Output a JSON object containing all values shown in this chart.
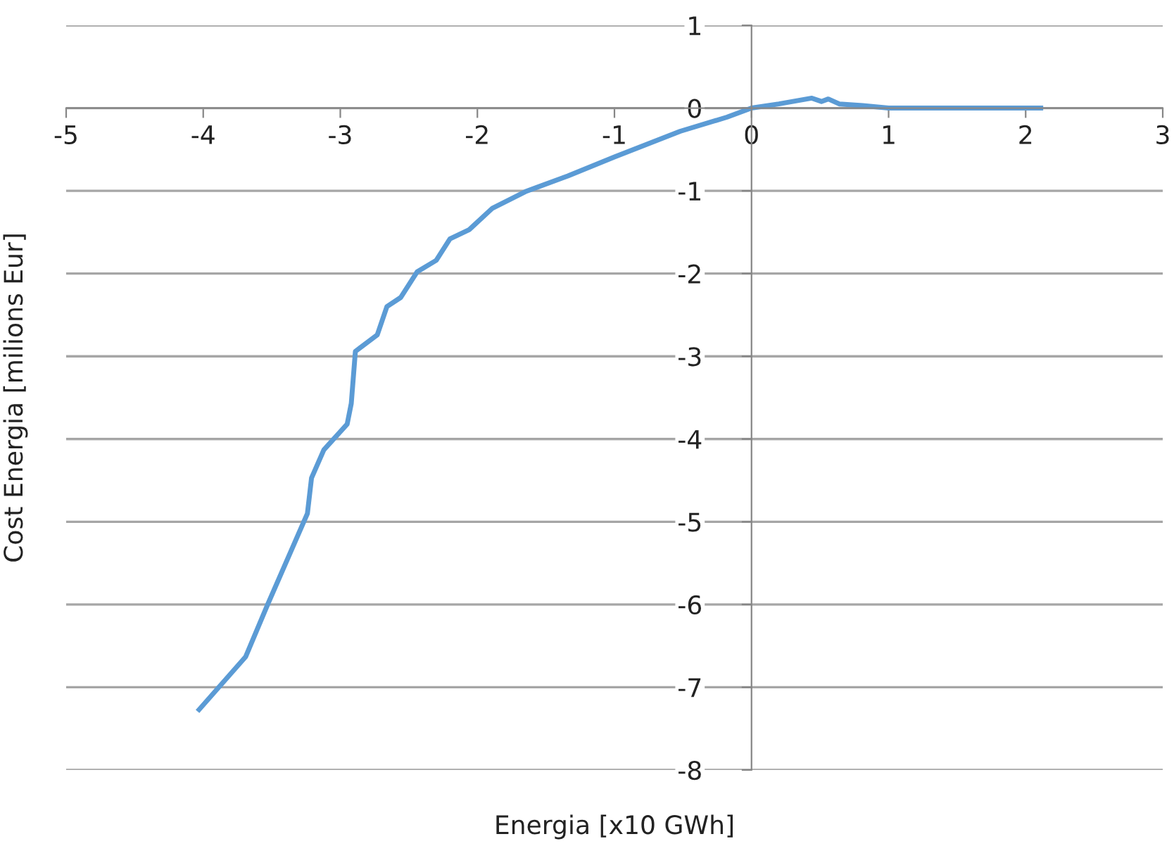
{
  "chart_data": {
    "type": "line",
    "xlabel": "Energia [x10 GWh]",
    "ylabel": "Cost Energia [milions Eur]",
    "xlim": [
      -5,
      3
    ],
    "xticks": [
      -5,
      -4,
      -3,
      -2,
      -1,
      0,
      1,
      2,
      3
    ],
    "ylim": [
      -8,
      1
    ],
    "yticks": [
      -8,
      -7,
      -6,
      -5,
      -4,
      -3,
      -2,
      -1,
      0,
      1
    ],
    "grid": "y",
    "marker": "none",
    "line_style": "solid",
    "legend": false,
    "series": [
      {
        "color": "#5b9bd5",
        "x": [
          -4.03,
          -3.69,
          -3.53,
          -3.24,
          -3.21,
          -3.12,
          -2.95,
          -2.92,
          -2.89,
          -2.73,
          -2.66,
          -2.56,
          -2.44,
          -2.3,
          -2.2,
          -2.06,
          -1.89,
          -1.65,
          -1.34,
          -1.0,
          -0.52,
          -0.18,
          0.0,
          0.2,
          0.44,
          0.51,
          0.56,
          0.64,
          0.81,
          1.0,
          2.11
        ],
        "values": [
          -7.27,
          -6.63,
          -6.0,
          -4.9,
          -4.47,
          -4.13,
          -3.82,
          -3.57,
          -2.94,
          -2.74,
          -2.4,
          -2.29,
          -1.98,
          -1.84,
          -1.58,
          -1.47,
          -1.21,
          -1.01,
          -0.82,
          -0.59,
          -0.28,
          -0.11,
          0.0,
          0.05,
          0.12,
          0.08,
          0.11,
          0.05,
          0.03,
          0.0,
          0.0
        ]
      }
    ]
  }
}
